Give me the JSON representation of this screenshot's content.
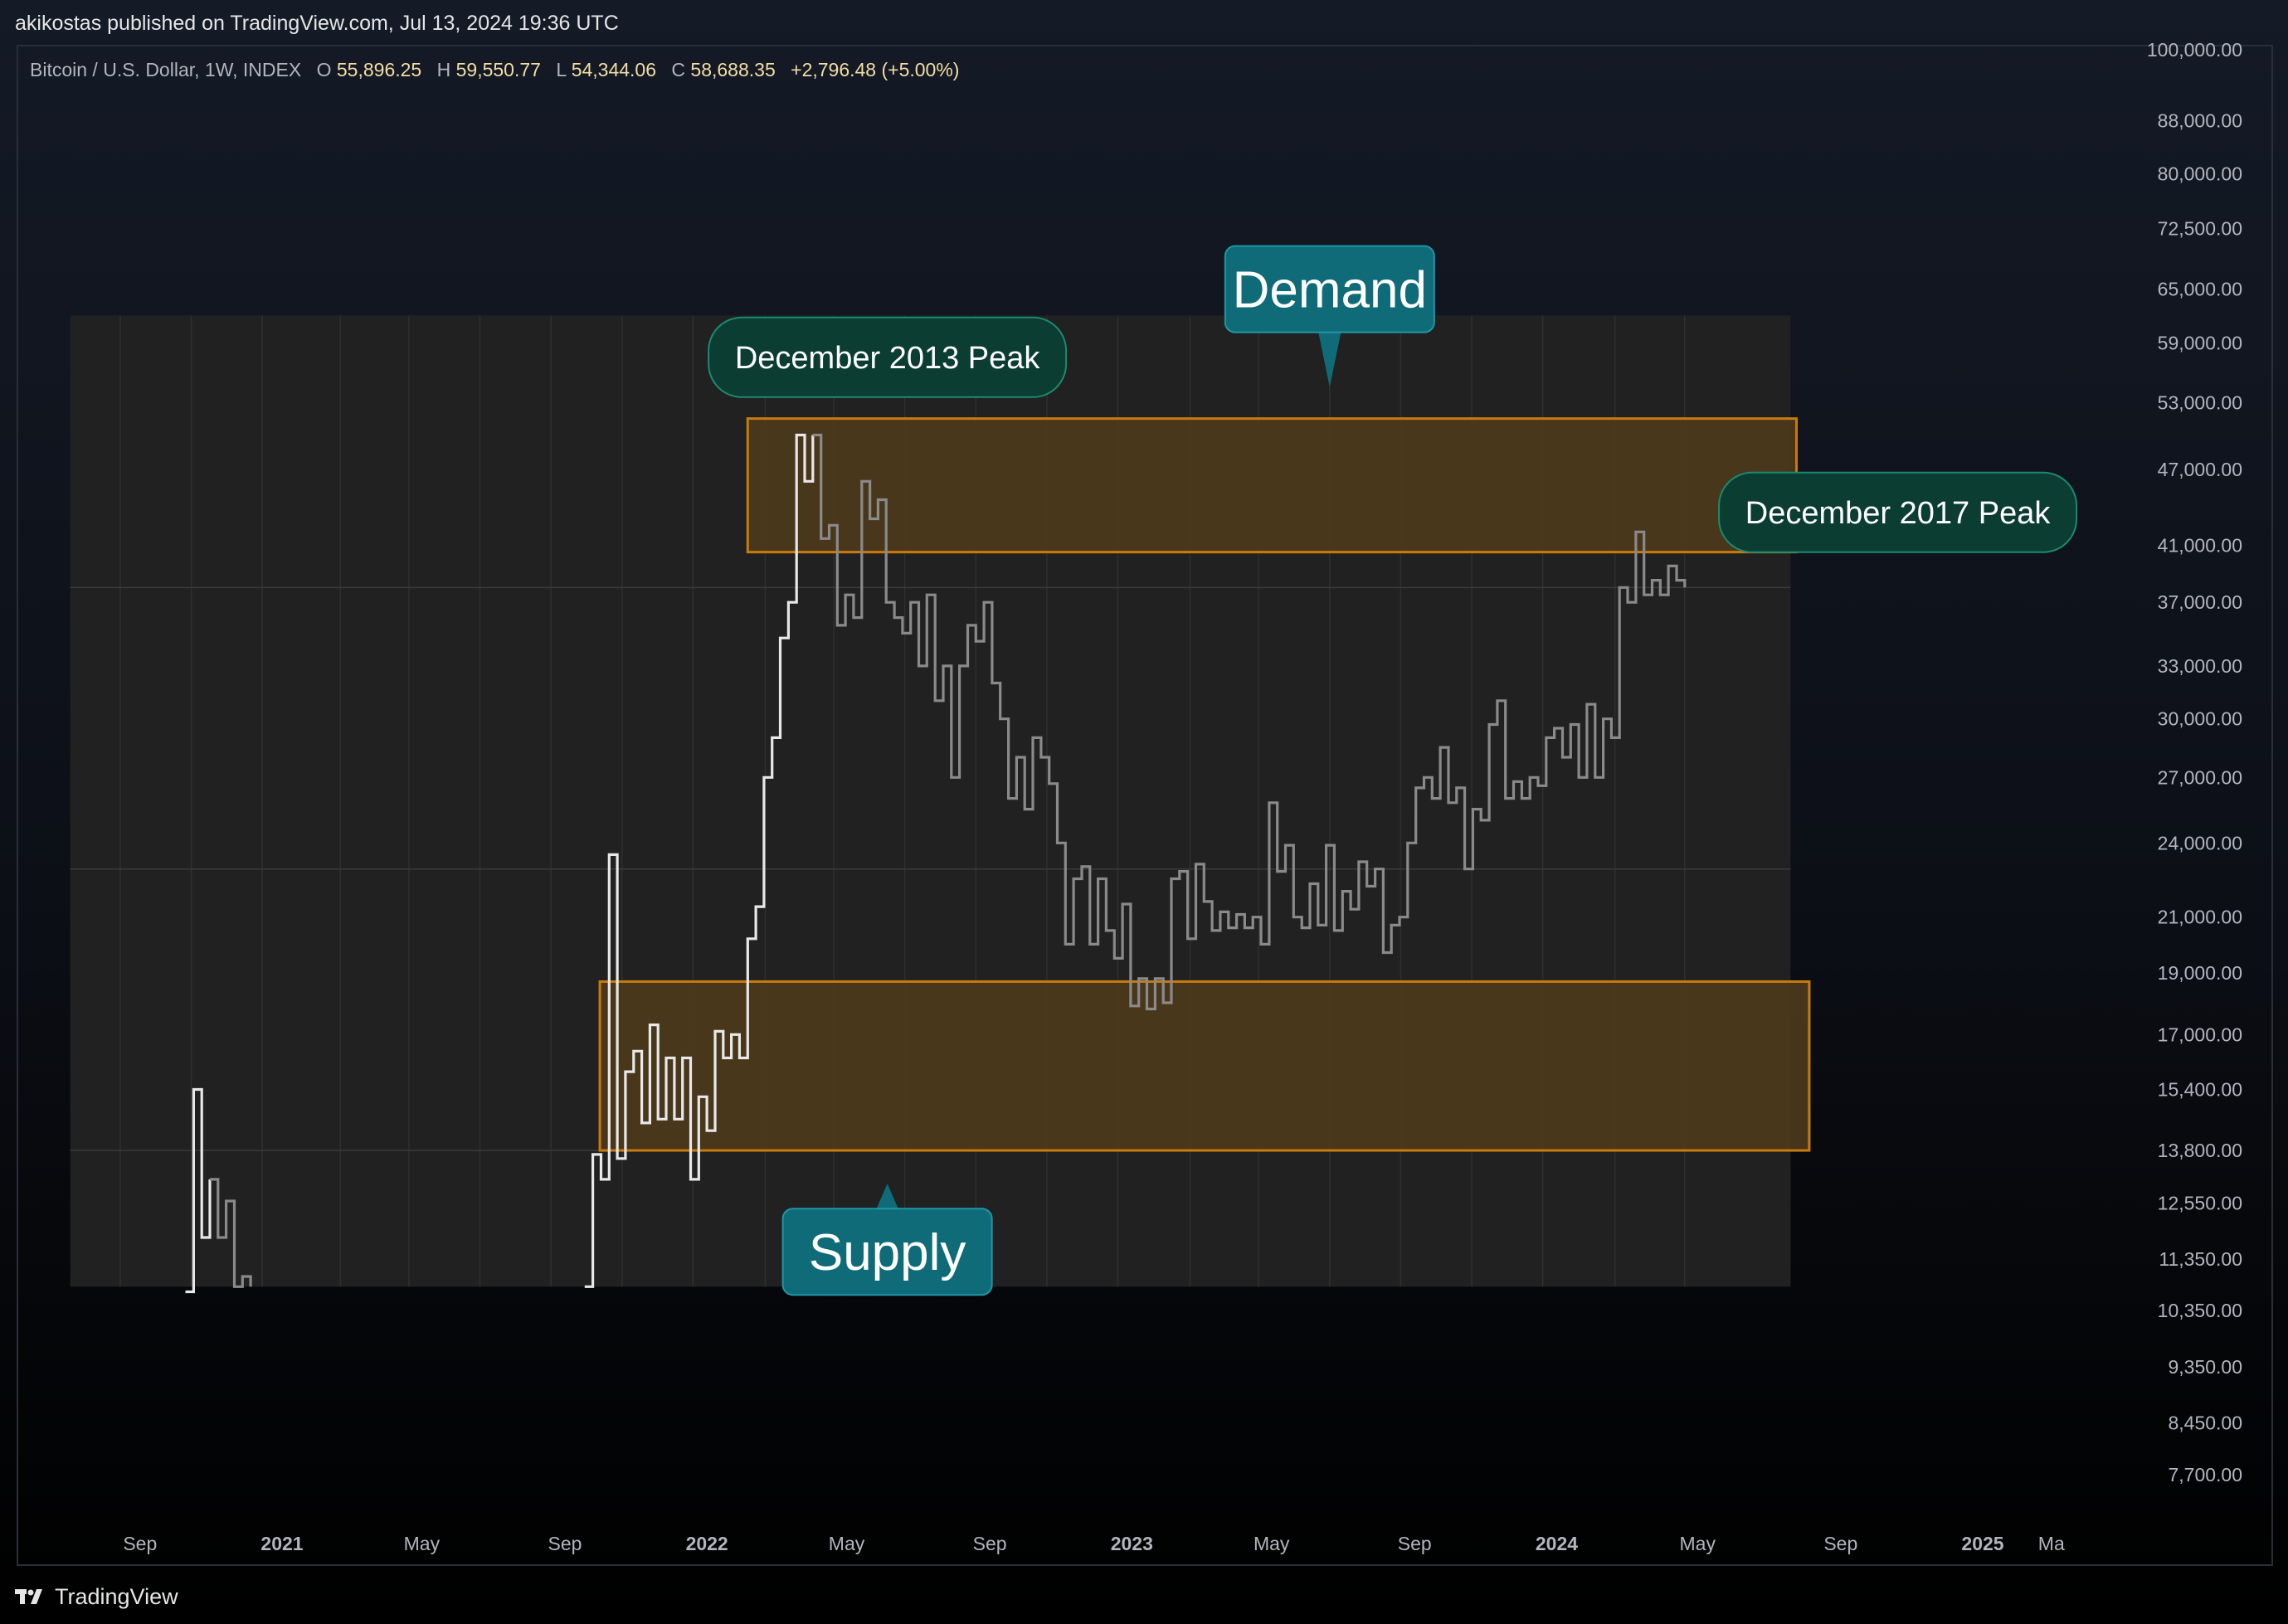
{
  "header": {
    "published": "akikostas published on TradingView.com, Jul 13, 2024 19:36 UTC"
  },
  "legend": {
    "symbol": "Bitcoin / U.S. Dollar, 1W, INDEX",
    "o_label": "O",
    "o_value": "55,896.25",
    "h_label": "H",
    "h_value": "59,550.77",
    "l_label": "L",
    "l_value": "54,344.06",
    "c_label": "C",
    "c_value": "58,688.35",
    "change": "+2,796.48 (+5.00%)"
  },
  "footer": {
    "brand": "TradingView"
  },
  "colors": {
    "background_top": "#141a26",
    "background_bottom": "#000000",
    "pane": "#212121",
    "zone_fill": "#4d3a1c",
    "zone_border": "#c87b0d",
    "line": "#e8e8e8",
    "line_dim": "#8a8a8a",
    "callout_teal": "#0f6b78",
    "callout_dark_green": "#0b3d33",
    "legend_values": "#f2dea3",
    "axis_text": "#b2b5be"
  },
  "chart_data": {
    "type": "line",
    "subtype": "weekly step line (close)",
    "scale": "log",
    "symbol": "Bitcoin / U.S. Dollar, 1W, INDEX",
    "y_ticks": [
      "100,000.00",
      "88,000.00",
      "80,000.00",
      "72,500.00",
      "65,000.00",
      "59,000.00",
      "53,000.00",
      "47,000.00",
      "41,000.00",
      "37,000.00",
      "33,000.00",
      "30,000.00",
      "27,000.00",
      "24,000.00",
      "21,000.00",
      "19,000.00",
      "17,000.00",
      "15,400.00",
      "13,800.00",
      "12,550.00",
      "11,350.00",
      "10,350.00",
      "9,350.00",
      "8,450.00",
      "7,700.00"
    ],
    "y_tick_values": [
      100000,
      88000,
      80000,
      72500,
      65000,
      59000,
      53000,
      47000,
      41000,
      37000,
      33000,
      30000,
      27000,
      24000,
      21000,
      19000,
      17000,
      15400,
      13800,
      12550,
      11350,
      10350,
      9350,
      8450,
      7700
    ],
    "ylim": [
      7000,
      101000
    ],
    "x_ticks": [
      {
        "label": "Sep",
        "date": "2020-09-01",
        "bold": false
      },
      {
        "label": "2021",
        "date": "2021-01-01",
        "bold": true
      },
      {
        "label": "May",
        "date": "2021-05-01",
        "bold": false
      },
      {
        "label": "Sep",
        "date": "2021-09-01",
        "bold": false
      },
      {
        "label": "2022",
        "date": "2022-01-01",
        "bold": true
      },
      {
        "label": "May",
        "date": "2022-05-01",
        "bold": false
      },
      {
        "label": "Sep",
        "date": "2022-09-01",
        "bold": false
      },
      {
        "label": "2023",
        "date": "2023-01-01",
        "bold": true
      },
      {
        "label": "May",
        "date": "2023-05-01",
        "bold": false
      },
      {
        "label": "Sep",
        "date": "2023-09-01",
        "bold": false
      },
      {
        "label": "2024",
        "date": "2024-01-01",
        "bold": true
      },
      {
        "label": "May",
        "date": "2024-05-01",
        "bold": false
      },
      {
        "label": "Sep",
        "date": "2024-09-01",
        "bold": false
      },
      {
        "label": "2025",
        "date": "2025-01-01",
        "bold": true
      },
      {
        "label": "Ma",
        "date": "2025-03-01",
        "bold": false
      }
    ],
    "xlim": [
      "2020-07-01",
      "2025-03-15"
    ],
    "pane_range": {
      "x": [
        "2020-07-03",
        "2024-07-20"
      ],
      "y": [
        10800,
        62000
      ]
    },
    "grid_dates": [
      "2020-08-15",
      "2020-10-15",
      "2020-12-15",
      "2021-02-20",
      "2021-04-20",
      "2021-06-20",
      "2021-08-20",
      "2021-10-20",
      "2021-12-20",
      "2022-02-20",
      "2022-04-20",
      "2022-06-20",
      "2022-08-20",
      "2022-10-20",
      "2022-12-20",
      "2023-02-20",
      "2023-04-20",
      "2023-06-20",
      "2023-08-20",
      "2023-10-20",
      "2023-12-20",
      "2024-02-20",
      "2024-04-20"
    ],
    "grid_prices": [
      38000,
      22900,
      13800
    ],
    "segments": [
      {
        "name": "segment-1",
        "start": "2020-10-10",
        "dim_from": 3,
        "values": [
          10700,
          15400,
          11800,
          13100,
          11800,
          12600,
          10800,
          11000,
          10800
        ]
      },
      {
        "name": "segment-2",
        "start": "2021-09-18",
        "dim_from": 28,
        "values": [
          10800,
          13700,
          13100,
          23500,
          13600,
          15900,
          16500,
          14500,
          17300,
          14600,
          16300,
          14600,
          16300,
          13100,
          15200,
          14300,
          17100,
          16300,
          17000,
          16300,
          20200,
          21400,
          27000,
          29000,
          34700,
          37000,
          50000,
          46000,
          50000,
          41500,
          42500,
          35500,
          37500,
          36000,
          46000,
          43000,
          44500,
          37000,
          36000,
          35000,
          37000,
          33000,
          37500,
          31000,
          33000,
          27000,
          33000,
          35500,
          34500,
          37000,
          32000,
          30000,
          26000,
          28000,
          25500,
          29000,
          28000,
          26700,
          24000,
          20000,
          22500,
          23000,
          20000,
          22500,
          20500,
          19500,
          21500,
          17900,
          18800,
          17800,
          18800,
          18000,
          22500,
          22800,
          20200,
          23100,
          21600,
          20500,
          21200,
          20600,
          21100,
          20600,
          21000,
          20000,
          25800,
          22800,
          23900,
          21000,
          20600,
          22300,
          20700,
          23900,
          20500,
          22000,
          21300,
          23200,
          22200,
          22900,
          19700,
          20700,
          21000,
          24000,
          26500,
          27000,
          26000,
          28500,
          25800,
          26500,
          22900,
          25500,
          25000,
          29700,
          31000,
          26000,
          26800,
          26000,
          27000,
          26600,
          29000,
          29500,
          28000,
          29700,
          27000,
          30800,
          27000,
          30000,
          29000,
          38000,
          37000,
          42000,
          37500,
          38500,
          37500,
          39500,
          38500,
          38000
        ]
      }
    ],
    "zones": [
      {
        "name": "demand-zone",
        "from": "2022-02-05",
        "to": "2024-07-25",
        "low": 40500,
        "high": 51500
      },
      {
        "name": "supply-zone",
        "from": "2021-10-01",
        "to": "2024-08-05",
        "low": 13800,
        "high": 18700
      }
    ],
    "annotations": [
      {
        "name": "demand-callout",
        "text": "Demand",
        "style": "teal-large",
        "date": "2023-06-20",
        "price": 65000,
        "pointer": "down",
        "tip_date": "2023-06-20",
        "tip_price": 54500
      },
      {
        "name": "supply-callout",
        "text": "Supply",
        "style": "teal-large",
        "date": "2022-06-05",
        "price": 11500,
        "pointer": "up",
        "tip_date": "2022-06-05",
        "tip_price": 13000
      },
      {
        "name": "dec-2013-peak-callout",
        "text": "December 2013 Peak",
        "style": "dark-green",
        "date": "2022-06-05",
        "price": 57500,
        "pointer": "none"
      },
      {
        "name": "dec-2017-peak-callout",
        "text": "December 2017 Peak",
        "style": "dark-green",
        "date": "2024-10-20",
        "price": 43500,
        "pointer": "none"
      }
    ]
  }
}
